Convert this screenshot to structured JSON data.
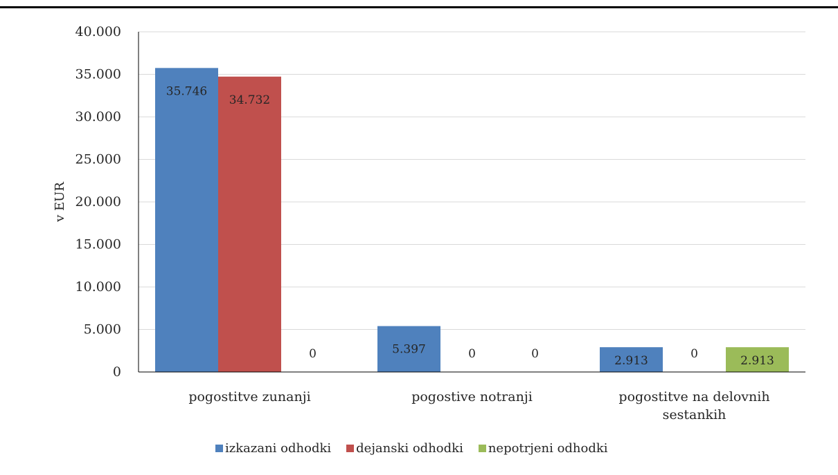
{
  "chart_data": {
    "type": "bar",
    "categories": [
      "pogostitve zunanji",
      "pogostive notranji",
      "pogostitve na delovnih sestankih"
    ],
    "series": [
      {
        "name": "izkazani odhodki",
        "values": [
          35746,
          5397,
          2913
        ],
        "labels": [
          "35.746",
          "5.397",
          "2.913"
        ],
        "color": "#4F81BD"
      },
      {
        "name": "dejanski odhodki",
        "values": [
          34732,
          0,
          0
        ],
        "labels": [
          "34.732",
          "0",
          "0"
        ],
        "color": "#C0504D"
      },
      {
        "name": "nepotrjeni odhodki",
        "values": [
          0,
          0,
          2913
        ],
        "labels": [
          "0",
          "0",
          "2.913"
        ],
        "color": "#9BBB59"
      }
    ],
    "ylabel": "v EUR",
    "ylim": [
      0,
      40000
    ],
    "yticks": [
      0,
      5000,
      10000,
      15000,
      20000,
      25000,
      30000,
      35000,
      40000
    ],
    "ytick_labels": [
      "0",
      "5.000",
      "10.000",
      "15.000",
      "20.000",
      "25.000",
      "30.000",
      "35.000",
      "40.000"
    ],
    "grid": true,
    "legend_position": "bottom"
  }
}
